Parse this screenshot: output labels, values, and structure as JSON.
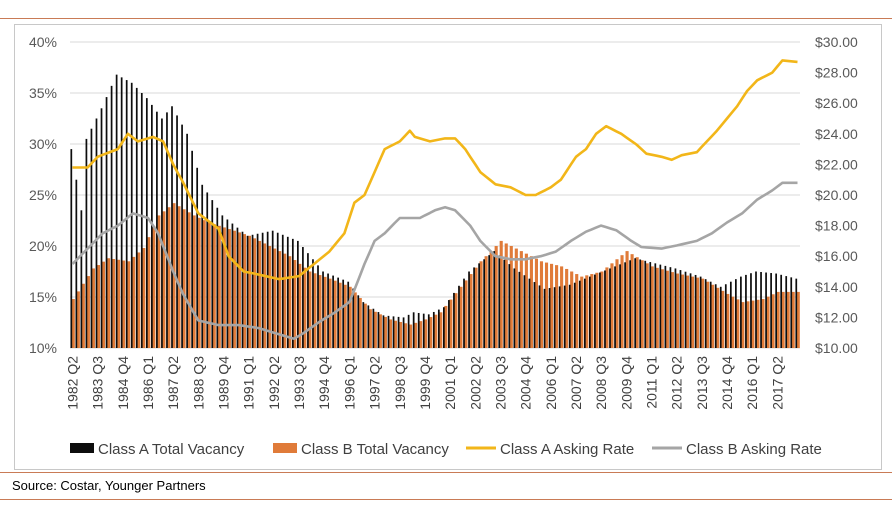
{
  "source": "Source: Costar, Younger Partners",
  "colors": {
    "class_a_vacancy": "#0d0d0d",
    "class_b_vacancy": "#e07b39",
    "class_a_rate": "#f2b619",
    "class_b_rate": "#a5a5a5",
    "rule": "#c97b56"
  },
  "chart_data": {
    "type": "bar",
    "title": "",
    "y_left": {
      "ticks": [
        "40%",
        "35%",
        "30%",
        "25%",
        "20%",
        "15%",
        "10%"
      ],
      "range": [
        10,
        40
      ]
    },
    "y_right": {
      "ticks": [
        "$30.00",
        "$28.00",
        "$26.00",
        "$24.00",
        "$22.00",
        "$20.00",
        "$18.00",
        "$16.00",
        "$14.00",
        "$12.00",
        "$10.00"
      ],
      "range": [
        10,
        30
      ]
    },
    "x_tick_labels": [
      "1982 Q2",
      "1983 Q3",
      "1984 Q4",
      "1986 Q1",
      "1987 Q2",
      "1988 Q3",
      "1989 Q4",
      "1991 Q1",
      "1992 Q2",
      "1993 Q3",
      "1994 Q4",
      "1996 Q1",
      "1997 Q2",
      "1998 Q3",
      "1999 Q4",
      "2001 Q1",
      "2002 Q2",
      "2003 Q3",
      "2004 Q4",
      "2006 Q1",
      "2007 Q2",
      "2008 Q3",
      "2009 Q4",
      "2011 Q1",
      "2012 Q2",
      "2013 Q3",
      "2014 Q4",
      "2016 Q1",
      "2017 Q2"
    ],
    "x_range_quarters": {
      "start": "1982 Q2",
      "end": "2018 Q2"
    },
    "legend": [
      "Class A Total Vacancy",
      "Class B Total Vacancy",
      "Class A Asking Rate",
      "Class B Asking Rate"
    ],
    "legend_position": "bottom",
    "series": [
      {
        "name": "Class A Total Vacancy",
        "kind": "bar",
        "axis": "left",
        "unit": "%",
        "key_points": [
          [
            "1982 Q2",
            29.5
          ],
          [
            "1982 Q4",
            23.5
          ],
          [
            "1983 Q1",
            30.5
          ],
          [
            "1983 Q4",
            33.5
          ],
          [
            "1984 Q3",
            36.8
          ],
          [
            "1985 Q2",
            36.0
          ],
          [
            "1986 Q1",
            34.5
          ],
          [
            "1986 Q4",
            32.5
          ],
          [
            "1987 Q2",
            33.7
          ],
          [
            "1988 Q1",
            31.0
          ],
          [
            "1988 Q4",
            26.0
          ],
          [
            "1989 Q4",
            23.0
          ],
          [
            "1991 Q1",
            21.0
          ],
          [
            "1992 Q2",
            21.5
          ],
          [
            "1993 Q3",
            20.5
          ],
          [
            "1994 Q4",
            17.5
          ],
          [
            "1996 Q1",
            16.5
          ],
          [
            "1996 Q4",
            14.5
          ],
          [
            "1997 Q4",
            13.2
          ],
          [
            "1998 Q4",
            13.0
          ],
          [
            "1999 Q2",
            13.5
          ],
          [
            "2000 Q1",
            13.3
          ],
          [
            "2000 Q4",
            14.0
          ],
          [
            "2002 Q1",
            17.5
          ],
          [
            "2003 Q2",
            19.5
          ],
          [
            "2004 Q2",
            17.8
          ],
          [
            "2005 Q4",
            15.8
          ],
          [
            "2007 Q1",
            16.2
          ],
          [
            "2008 Q1",
            17.0
          ],
          [
            "2009 Q2",
            18.0
          ],
          [
            "2010 Q2",
            18.8
          ],
          [
            "2011 Q2",
            18.3
          ],
          [
            "2012 Q2",
            17.8
          ],
          [
            "2013 Q3",
            17.0
          ],
          [
            "2014 Q3",
            16.0
          ],
          [
            "2015 Q3",
            17.0
          ],
          [
            "2016 Q2",
            17.5
          ],
          [
            "2017 Q2",
            17.3
          ],
          [
            "2018 Q2",
            16.8
          ]
        ]
      },
      {
        "name": "Class B Total Vacancy",
        "kind": "bar",
        "axis": "left",
        "unit": "%",
        "key_points": [
          [
            "1982 Q2",
            14.8
          ],
          [
            "1983 Q2",
            17.8
          ],
          [
            "1984 Q1",
            18.8
          ],
          [
            "1985 Q1",
            18.5
          ],
          [
            "1985 Q4",
            19.8
          ],
          [
            "1986 Q3",
            23.0
          ],
          [
            "1987 Q2",
            24.2
          ],
          [
            "1988 Q2",
            23.0
          ],
          [
            "1989 Q1",
            22.3
          ],
          [
            "1990 Q2",
            21.5
          ],
          [
            "1991 Q1",
            21.0
          ],
          [
            "1992 Q1",
            20.0
          ],
          [
            "1993 Q1",
            19.0
          ],
          [
            "1994 Q1",
            17.5
          ],
          [
            "1995 Q1",
            16.8
          ],
          [
            "1996 Q1",
            16.0
          ],
          [
            "1997 Q1",
            13.8
          ],
          [
            "1998 Q1",
            12.8
          ],
          [
            "1999 Q1",
            12.3
          ],
          [
            "1999 Q4",
            12.8
          ],
          [
            "2000 Q3",
            13.5
          ],
          [
            "2001 Q3",
            16.0
          ],
          [
            "2002 Q3",
            18.5
          ],
          [
            "2003 Q3",
            20.5
          ],
          [
            "2004 Q3",
            19.5
          ],
          [
            "2005 Q3",
            18.5
          ],
          [
            "2006 Q3",
            18.0
          ],
          [
            "2007 Q3",
            17.0
          ],
          [
            "2008 Q3",
            17.5
          ],
          [
            "2009 Q4",
            19.5
          ],
          [
            "2011 Q1",
            18.0
          ],
          [
            "2012 Q2",
            17.3
          ],
          [
            "2013 Q3",
            16.8
          ],
          [
            "2014 Q4",
            15.3
          ],
          [
            "2015 Q3",
            14.5
          ],
          [
            "2016 Q3",
            14.8
          ],
          [
            "2017 Q2",
            15.5
          ],
          [
            "2018 Q2",
            15.5
          ]
        ]
      },
      {
        "name": "Class A Asking Rate",
        "kind": "line",
        "axis": "right",
        "unit": "$",
        "key_points": [
          [
            "1982 Q2",
            21.8
          ],
          [
            "1983 Q1",
            21.8
          ],
          [
            "1983 Q3",
            22.5
          ],
          [
            "1984 Q3",
            23.0
          ],
          [
            "1985 Q1",
            24.0
          ],
          [
            "1985 Q3",
            23.5
          ],
          [
            "1986 Q2",
            23.8
          ],
          [
            "1986 Q4",
            23.5
          ],
          [
            "1987 Q2",
            22.0
          ],
          [
            "1987 Q4",
            20.8
          ],
          [
            "1988 Q3",
            18.8
          ],
          [
            "1989 Q3",
            17.8
          ],
          [
            "1990 Q1",
            16.0
          ],
          [
            "1990 Q4",
            15.0
          ],
          [
            "1991 Q3",
            14.8
          ],
          [
            "1992 Q3",
            14.5
          ],
          [
            "1993 Q3",
            14.7
          ],
          [
            "1994 Q2",
            15.5
          ],
          [
            "1995 Q1",
            16.3
          ],
          [
            "1995 Q4",
            17.5
          ],
          [
            "1996 Q2",
            19.5
          ],
          [
            "1996 Q4",
            20.0
          ],
          [
            "1997 Q2",
            21.5
          ],
          [
            "1997 Q4",
            23.0
          ],
          [
            "1998 Q3",
            23.5
          ],
          [
            "1999 Q1",
            24.2
          ],
          [
            "1999 Q2",
            23.8
          ],
          [
            "2000 Q1",
            23.5
          ],
          [
            "2000 Q4",
            23.7
          ],
          [
            "2001 Q2",
            23.7
          ],
          [
            "2001 Q4",
            23.0
          ],
          [
            "2002 Q3",
            21.5
          ],
          [
            "2003 Q2",
            20.7
          ],
          [
            "2004 Q1",
            20.5
          ],
          [
            "2004 Q4",
            20.0
          ],
          [
            "2005 Q2",
            20.0
          ],
          [
            "2006 Q1",
            20.5
          ],
          [
            "2006 Q3",
            21.0
          ],
          [
            "2007 Q2",
            22.5
          ],
          [
            "2007 Q4",
            23.0
          ],
          [
            "2008 Q2",
            24.0
          ],
          [
            "2008 Q4",
            24.5
          ],
          [
            "2009 Q3",
            24.0
          ],
          [
            "2010 Q2",
            23.3
          ],
          [
            "2010 Q4",
            22.7
          ],
          [
            "2011 Q3",
            22.5
          ],
          [
            "2012 Q1",
            22.3
          ],
          [
            "2012 Q3",
            22.6
          ],
          [
            "2013 Q2",
            22.8
          ],
          [
            "2013 Q4",
            23.5
          ],
          [
            "2014 Q2",
            24.2
          ],
          [
            "2014 Q4",
            25.0
          ],
          [
            "2015 Q2",
            25.8
          ],
          [
            "2015 Q4",
            26.8
          ],
          [
            "2016 Q2",
            27.5
          ],
          [
            "2017 Q1",
            28.0
          ],
          [
            "2017 Q3",
            28.8
          ],
          [
            "2018 Q2",
            28.7
          ]
        ]
      },
      {
        "name": "Class B Asking Rate",
        "kind": "line",
        "axis": "right",
        "unit": "$",
        "key_points": [
          [
            "1982 Q2",
            15.5
          ],
          [
            "1983 Q1",
            16.5
          ],
          [
            "1983 Q4",
            17.5
          ],
          [
            "1984 Q3",
            18.0
          ],
          [
            "1985 Q2",
            18.8
          ],
          [
            "1986 Q1",
            18.5
          ],
          [
            "1986 Q3",
            17.5
          ],
          [
            "1987 Q2",
            15.0
          ],
          [
            "1987 Q4",
            13.5
          ],
          [
            "1988 Q3",
            11.8
          ],
          [
            "1989 Q3",
            11.5
          ],
          [
            "1990 Q3",
            11.5
          ],
          [
            "1991 Q3",
            11.3
          ],
          [
            "1992 Q2",
            11.0
          ],
          [
            "1993 Q2",
            10.6
          ],
          [
            "1993 Q4",
            11.0
          ],
          [
            "1994 Q3",
            11.7
          ],
          [
            "1995 Q2",
            12.3
          ],
          [
            "1996 Q1",
            13.0
          ],
          [
            "1996 Q2",
            13.8
          ],
          [
            "1996 Q4",
            15.5
          ],
          [
            "1997 Q2",
            17.0
          ],
          [
            "1997 Q4",
            17.5
          ],
          [
            "1998 Q3",
            18.5
          ],
          [
            "1999 Q1",
            18.5
          ],
          [
            "1999 Q3",
            18.5
          ],
          [
            "2000 Q2",
            19.0
          ],
          [
            "2000 Q4",
            19.2
          ],
          [
            "2001 Q2",
            19.0
          ],
          [
            "2002 Q1",
            18.0
          ],
          [
            "2002 Q3",
            17.0
          ],
          [
            "2003 Q2",
            16.0
          ],
          [
            "2004 Q1",
            15.8
          ],
          [
            "2004 Q4",
            15.8
          ],
          [
            "2005 Q3",
            16.0
          ],
          [
            "2006 Q2",
            16.3
          ],
          [
            "2007 Q1",
            17.0
          ],
          [
            "2007 Q4",
            17.6
          ],
          [
            "2008 Q3",
            18.0
          ],
          [
            "2009 Q2",
            17.7
          ],
          [
            "2010 Q1",
            17.0
          ],
          [
            "2010 Q3",
            16.6
          ],
          [
            "2011 Q3",
            16.5
          ],
          [
            "2012 Q2",
            16.7
          ],
          [
            "2013 Q2",
            17.0
          ],
          [
            "2014 Q1",
            17.5
          ],
          [
            "2014 Q4",
            18.2
          ],
          [
            "2015 Q3",
            18.8
          ],
          [
            "2016 Q2",
            19.7
          ],
          [
            "2017 Q1",
            20.3
          ],
          [
            "2017 Q3",
            20.8
          ],
          [
            "2018 Q2",
            20.8
          ]
        ]
      }
    ]
  }
}
